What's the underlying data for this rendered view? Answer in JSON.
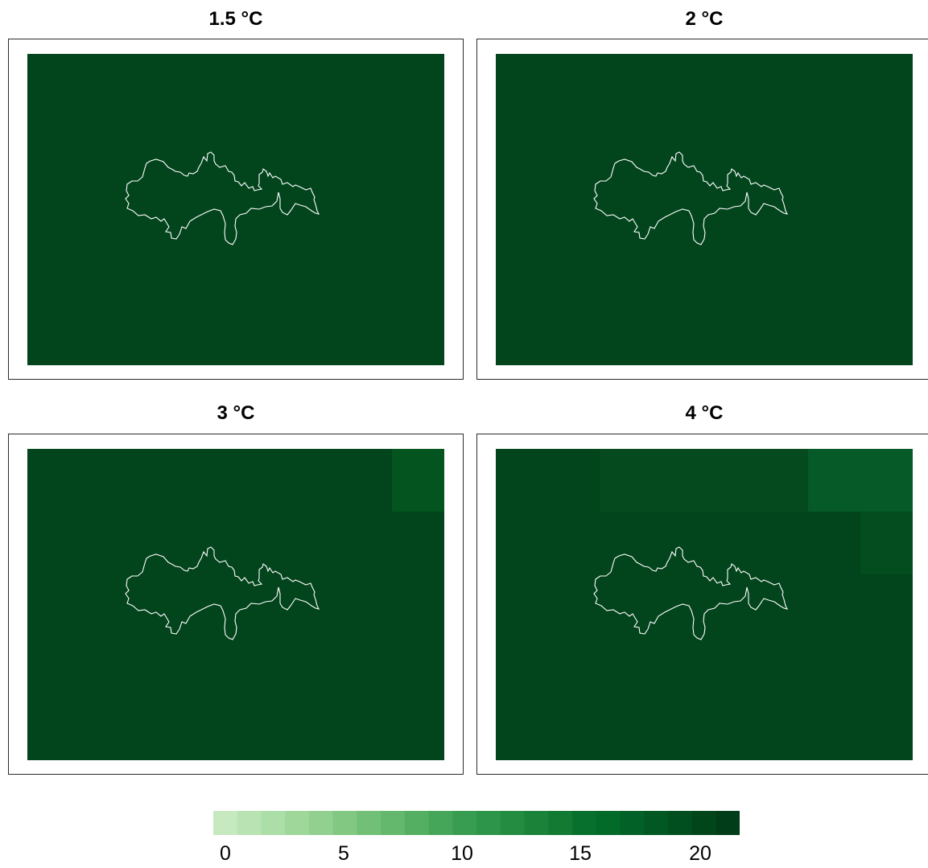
{
  "panels": [
    {
      "title": "1.5 °C",
      "base_color": "#02451d",
      "cells": []
    },
    {
      "title": "2 °C",
      "base_color": "#02451d",
      "cells": []
    },
    {
      "title": "3 °C",
      "base_color": "#02441c",
      "cells": [
        {
          "color": "#04541f"
        }
      ]
    },
    {
      "title": "4 °C",
      "base_color": "#02441c",
      "cells": [
        {
          "color": "#044a1e"
        },
        {
          "color": "#055a27"
        },
        {
          "color": "#034d1f"
        }
      ]
    }
  ],
  "colorbar": {
    "colors": [
      "#c7e9c0",
      "#b9e3b3",
      "#acdea7",
      "#9fd69a",
      "#91d08e",
      "#82c782",
      "#72bf77",
      "#63b86d",
      "#54af62",
      "#45a65a",
      "#399d51",
      "#2d9549",
      "#248c41",
      "#1b823a",
      "#127a33",
      "#07702c",
      "#026b29",
      "#016126",
      "#015823",
      "#014f1f",
      "#01461b",
      "#003d18"
    ],
    "ticks": [
      "0",
      "5",
      "10",
      "15",
      "20"
    ]
  }
}
